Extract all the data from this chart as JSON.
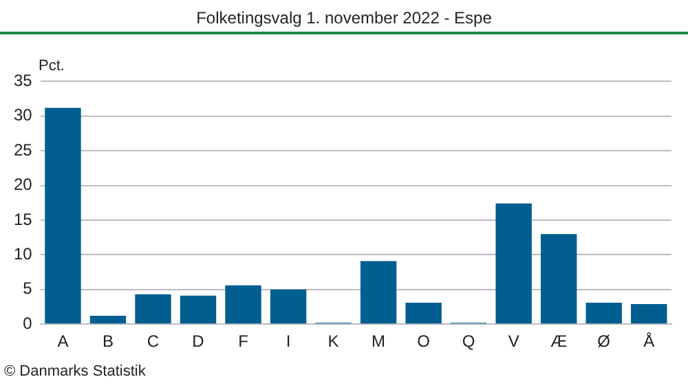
{
  "chart_data": {
    "type": "bar",
    "title": "Folketingsvalg 1. november 2022 - Espe",
    "ylabel": "Pct.",
    "categories": [
      "A",
      "B",
      "C",
      "D",
      "F",
      "I",
      "K",
      "M",
      "O",
      "Q",
      "V",
      "Æ",
      "Ø",
      "Å"
    ],
    "values": [
      31.2,
      1.2,
      4.3,
      4.1,
      5.6,
      5.0,
      0.2,
      9.1,
      3.1,
      0.2,
      17.4,
      13.0,
      3.1,
      2.9
    ],
    "color": "#005f90",
    "ylim": [
      0,
      35
    ],
    "yticks": [
      0,
      5,
      10,
      15,
      20,
      25,
      30,
      35
    ],
    "grid": "y",
    "annotations": [
      "© Danmarks Statistik"
    ]
  }
}
